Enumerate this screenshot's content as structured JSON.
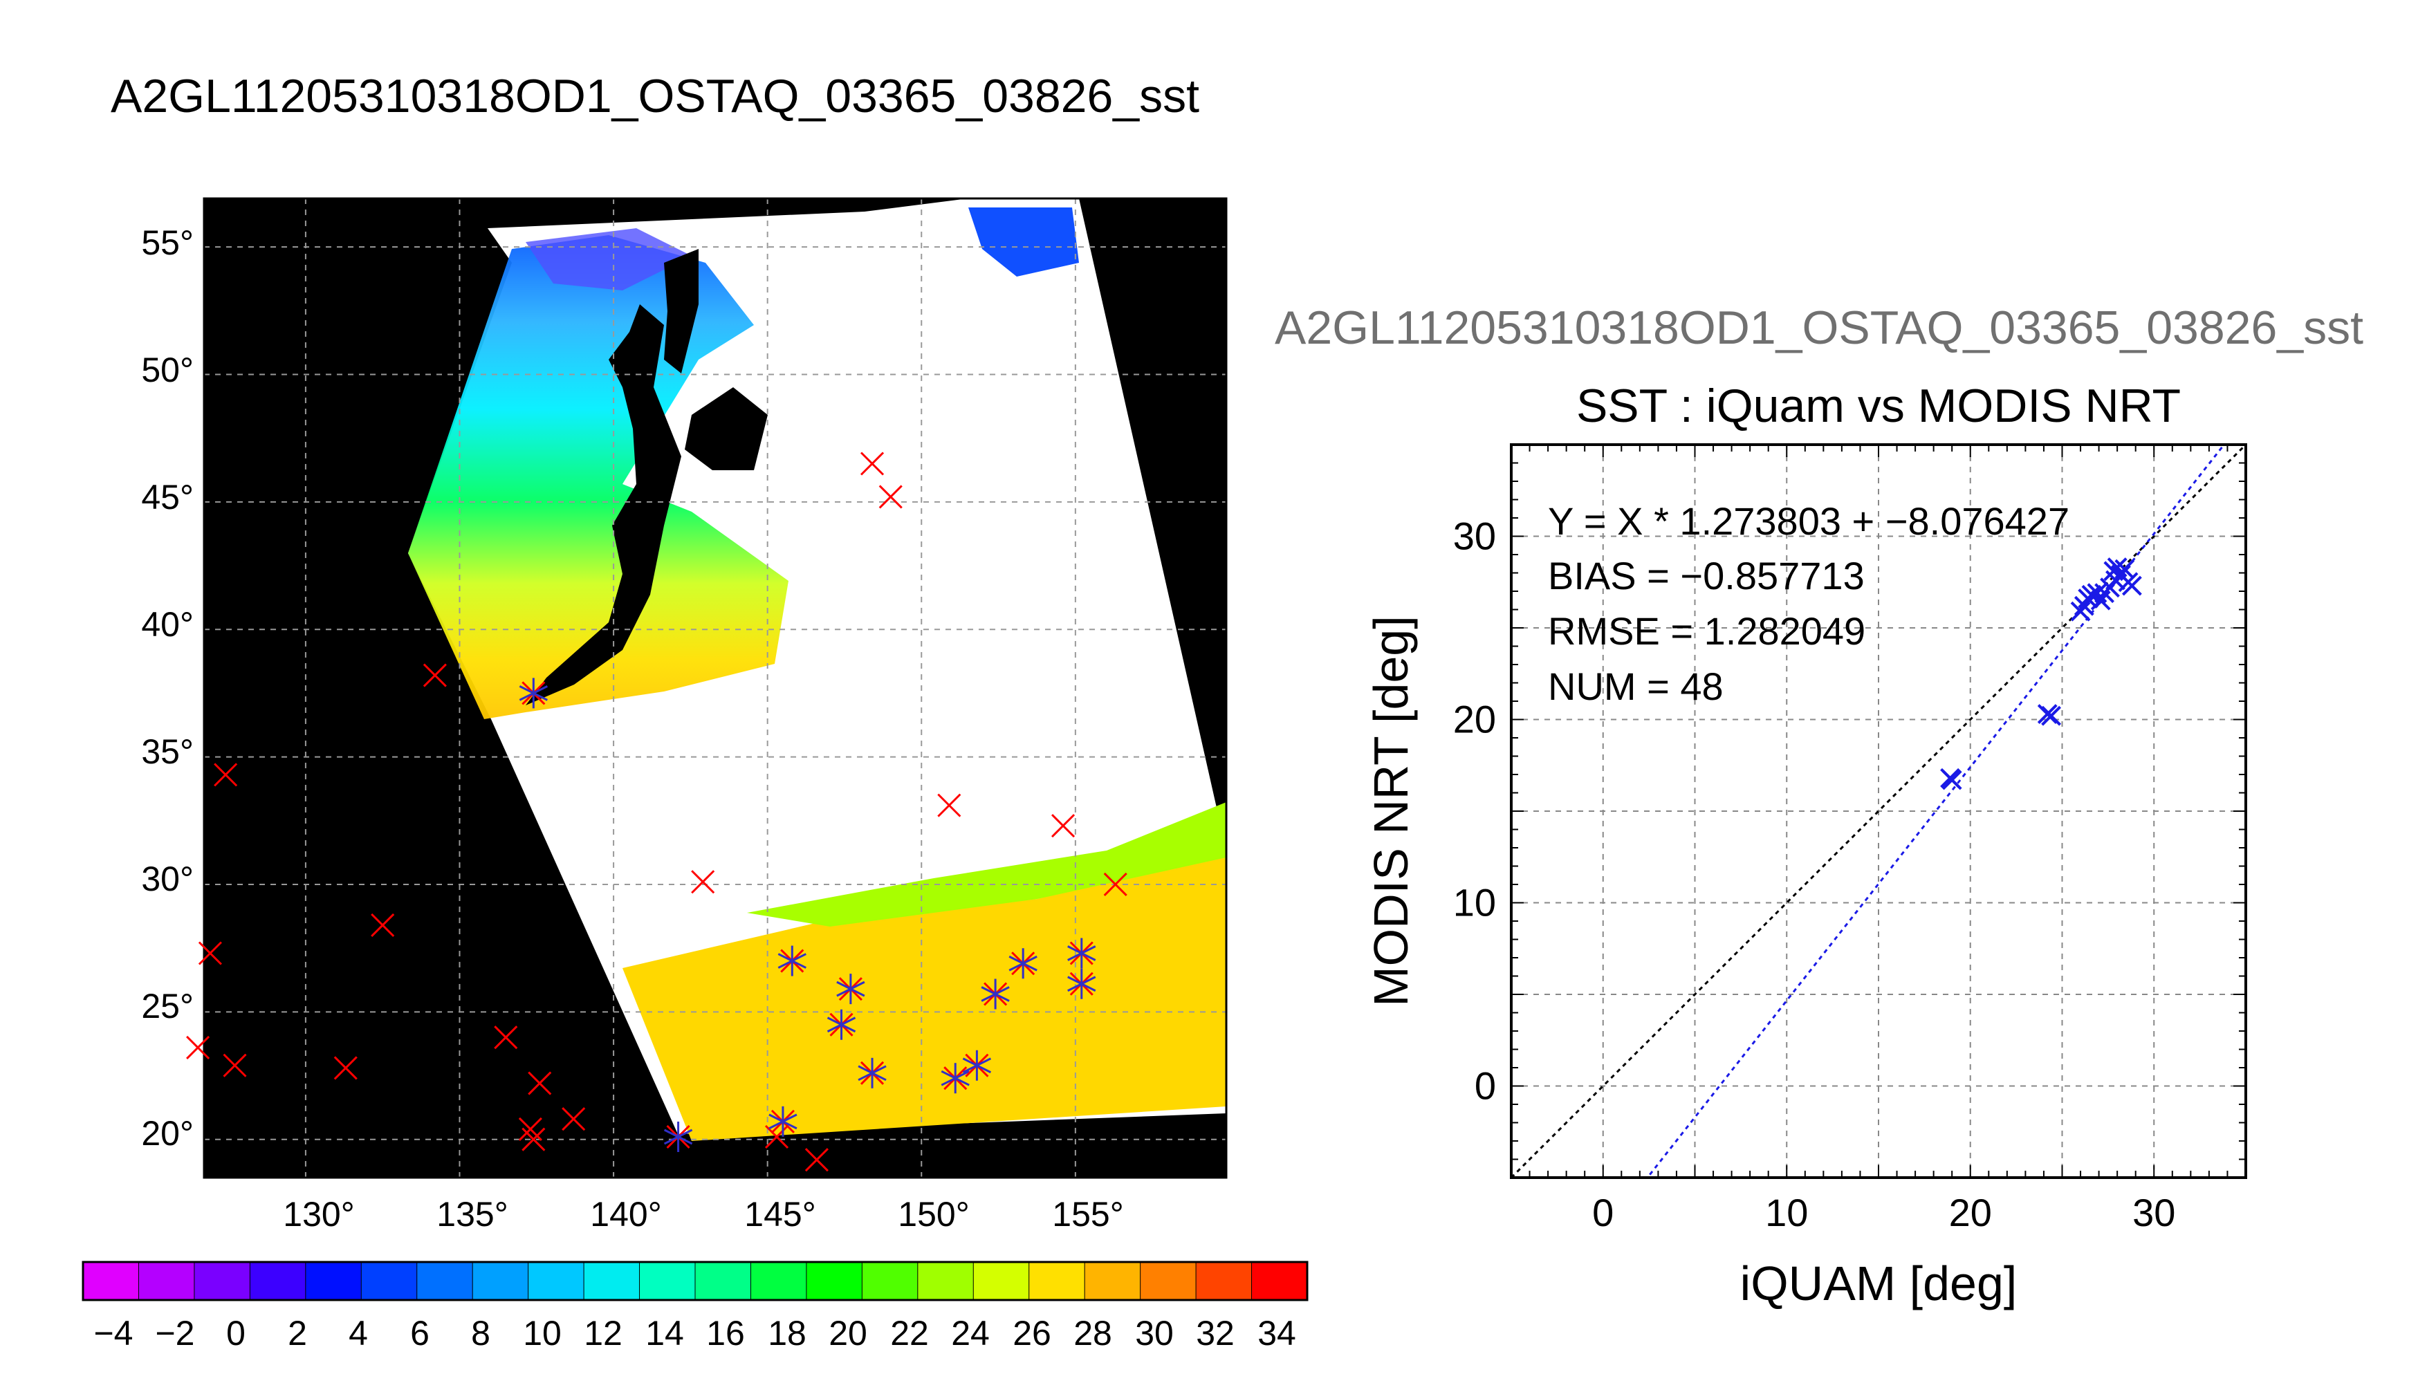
{
  "main_title": "A2GL11205310318OD1_OSTAQ_03365_03826_sst",
  "chart_data": [
    {
      "type": "map",
      "x_ticks": [
        "130°",
        "135°",
        "140°",
        "145°",
        "150°",
        "155°"
      ],
      "y_ticks": [
        "55°",
        "50°",
        "45°",
        "40°",
        "35°",
        "30°",
        "25°",
        "20°"
      ],
      "x_tick_values": [
        130,
        135,
        140,
        145,
        150,
        155
      ],
      "y_tick_values": [
        55,
        50,
        45,
        40,
        35,
        30,
        25,
        20
      ],
      "lon_range": [
        126.7,
        159.9
      ],
      "lat_range": [
        18.5,
        56.9
      ],
      "grid": true,
      "colorbar": {
        "range": [
          -5,
          35
        ],
        "tick_labels": [
          "−4",
          "−2",
          "0",
          "2",
          "4",
          "6",
          "8",
          "10",
          "12",
          "14",
          "16",
          "18",
          "20",
          "22",
          "24",
          "26",
          "28",
          "30",
          "32",
          "34"
        ],
        "tick_values": [
          -4,
          -2,
          0,
          2,
          4,
          6,
          8,
          10,
          12,
          14,
          16,
          18,
          20,
          22,
          24,
          26,
          28,
          30,
          32,
          34
        ],
        "colors": [
          "#e000ff",
          "#b400ff",
          "#7a00ff",
          "#3c00ff",
          "#0010ff",
          "#0040ff",
          "#0070ff",
          "#00a0ff",
          "#00c8ff",
          "#00ecf0",
          "#00ffc0",
          "#00ff88",
          "#00ff40",
          "#00ff00",
          "#50ff00",
          "#a0ff00",
          "#d4ff00",
          "#ffe000",
          "#ffb400",
          "#ff8000",
          "#ff4400",
          "#ff0000"
        ]
      },
      "points_iquam_only": [
        [
          127.4,
          34.3
        ],
        [
          126.9,
          27.3
        ],
        [
          127.7,
          22.9
        ],
        [
          126.5,
          23.6
        ],
        [
          131.3,
          22.8
        ],
        [
          132.5,
          28.4
        ],
        [
          134.2,
          38.2
        ],
        [
          136.5,
          24.0
        ],
        [
          137.6,
          22.2
        ],
        [
          137.3,
          20.4
        ],
        [
          137.4,
          20.0
        ],
        [
          138.7,
          20.8
        ],
        [
          142.9,
          30.1
        ],
        [
          145.3,
          20.1
        ],
        [
          146.6,
          19.2
        ],
        [
          148.4,
          46.5
        ],
        [
          149.0,
          45.2
        ],
        [
          150.9,
          33.1
        ],
        [
          154.6,
          32.3
        ],
        [
          156.3,
          30.0
        ]
      ],
      "points_matched": [
        [
          137.4,
          37.5
        ],
        [
          142.1,
          20.1
        ],
        [
          145.5,
          20.7
        ],
        [
          145.8,
          27.0
        ],
        [
          147.4,
          24.5
        ],
        [
          147.7,
          25.9
        ],
        [
          148.4,
          22.6
        ],
        [
          151.1,
          22.4
        ],
        [
          151.8,
          22.9
        ],
        [
          152.4,
          25.7
        ],
        [
          153.3,
          26.9
        ],
        [
          155.2,
          27.3
        ],
        [
          155.2,
          26.1
        ]
      ],
      "colors": {
        "iquam_marker": "#ff0000",
        "modis_marker": "#3030c8",
        "land": "#000000",
        "cloud": "#ffffff"
      }
    },
    {
      "type": "scatter",
      "subtitle": "A2GL11205310318OD1_OSTAQ_03365_03826_sst",
      "title": "SST : iQuam vs MODIS NRT",
      "xlabel": "iQUAM [deg]",
      "ylabel": "MODIS NRT [deg]",
      "xlim": [
        -5,
        35
      ],
      "ylim": [
        -5,
        35
      ],
      "x_ticks": [
        0,
        10,
        20,
        30
      ],
      "y_ticks": [
        0,
        10,
        20,
        30
      ],
      "grid": true,
      "stats": [
        "Y = X * 1.273803 + −8.076427",
        "BIAS = −0.857713",
        "RMSE = 1.282049",
        "NUM = 48"
      ],
      "fit": {
        "slope": 1.273803,
        "intercept": -8.076427
      },
      "points": [
        [
          18.9,
          16.8
        ],
        [
          19.0,
          16.7
        ],
        [
          24.2,
          20.3
        ],
        [
          24.4,
          20.2
        ],
        [
          26.0,
          25.9
        ],
        [
          26.2,
          26.2
        ],
        [
          26.4,
          26.6
        ],
        [
          26.6,
          26.8
        ],
        [
          26.9,
          26.9
        ],
        [
          27.1,
          26.5
        ],
        [
          27.3,
          26.9
        ],
        [
          27.6,
          27.2
        ],
        [
          27.8,
          28.1
        ],
        [
          27.9,
          27.6
        ],
        [
          28.0,
          28.3
        ],
        [
          28.2,
          27.9
        ],
        [
          28.4,
          28.2
        ],
        [
          28.6,
          27.5
        ],
        [
          28.8,
          27.3
        ]
      ],
      "colors": {
        "points": "#1a1ae6",
        "fit_line": "#1a1ae6",
        "one_to_one": "#000000",
        "subtitle": "#707070"
      }
    }
  ]
}
